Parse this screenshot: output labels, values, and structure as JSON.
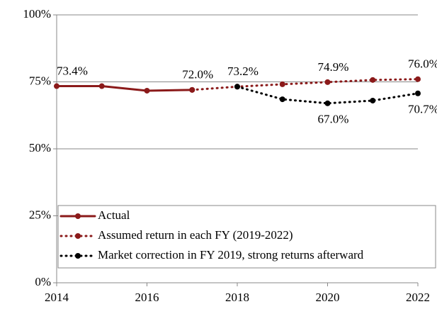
{
  "chart_data": {
    "type": "line",
    "x": [
      2014,
      2015,
      2016,
      2017,
      2018,
      2019,
      2020,
      2021,
      2022
    ],
    "xlim": [
      2014,
      2022
    ],
    "xticks": [
      2014,
      2016,
      2018,
      2020,
      2022
    ],
    "ylim": [
      0,
      100
    ],
    "yticks": [
      {
        "value": 0,
        "label": "0%"
      },
      {
        "value": 25,
        "label": "25%"
      },
      {
        "value": 50,
        "label": "50%"
      },
      {
        "value": 75,
        "label": "75%"
      },
      {
        "value": 100,
        "label": "100%"
      }
    ],
    "grid": true,
    "legend": "lower left",
    "series": [
      {
        "name": "Actual",
        "color": "#8b1a1a",
        "style": "solid",
        "values": [
          73.4,
          73.4,
          71.7,
          72.0,
          null,
          null,
          null,
          null,
          null
        ],
        "value_labels": [
          "73.4%",
          null,
          null,
          "72.0%",
          null,
          null,
          null,
          null,
          null
        ]
      },
      {
        "name": "Assumed return in each FY (2019-2022)",
        "color": "#8b1a1a",
        "style": "dotted",
        "values": [
          null,
          null,
          null,
          72.0,
          73.2,
          74.1,
          74.9,
          75.7,
          76.0
        ],
        "value_labels": [
          null,
          null,
          null,
          null,
          "73.2%",
          null,
          "74.9%",
          null,
          "76.0%"
        ]
      },
      {
        "name": "Market correction in FY 2019, strong returns afterward",
        "color": "#000000",
        "style": "dotted",
        "values": [
          null,
          null,
          null,
          null,
          73.2,
          68.5,
          67.0,
          68.0,
          70.7
        ],
        "value_labels": [
          null,
          null,
          null,
          null,
          null,
          null,
          "67.0%",
          null,
          "70.7%"
        ]
      }
    ]
  }
}
